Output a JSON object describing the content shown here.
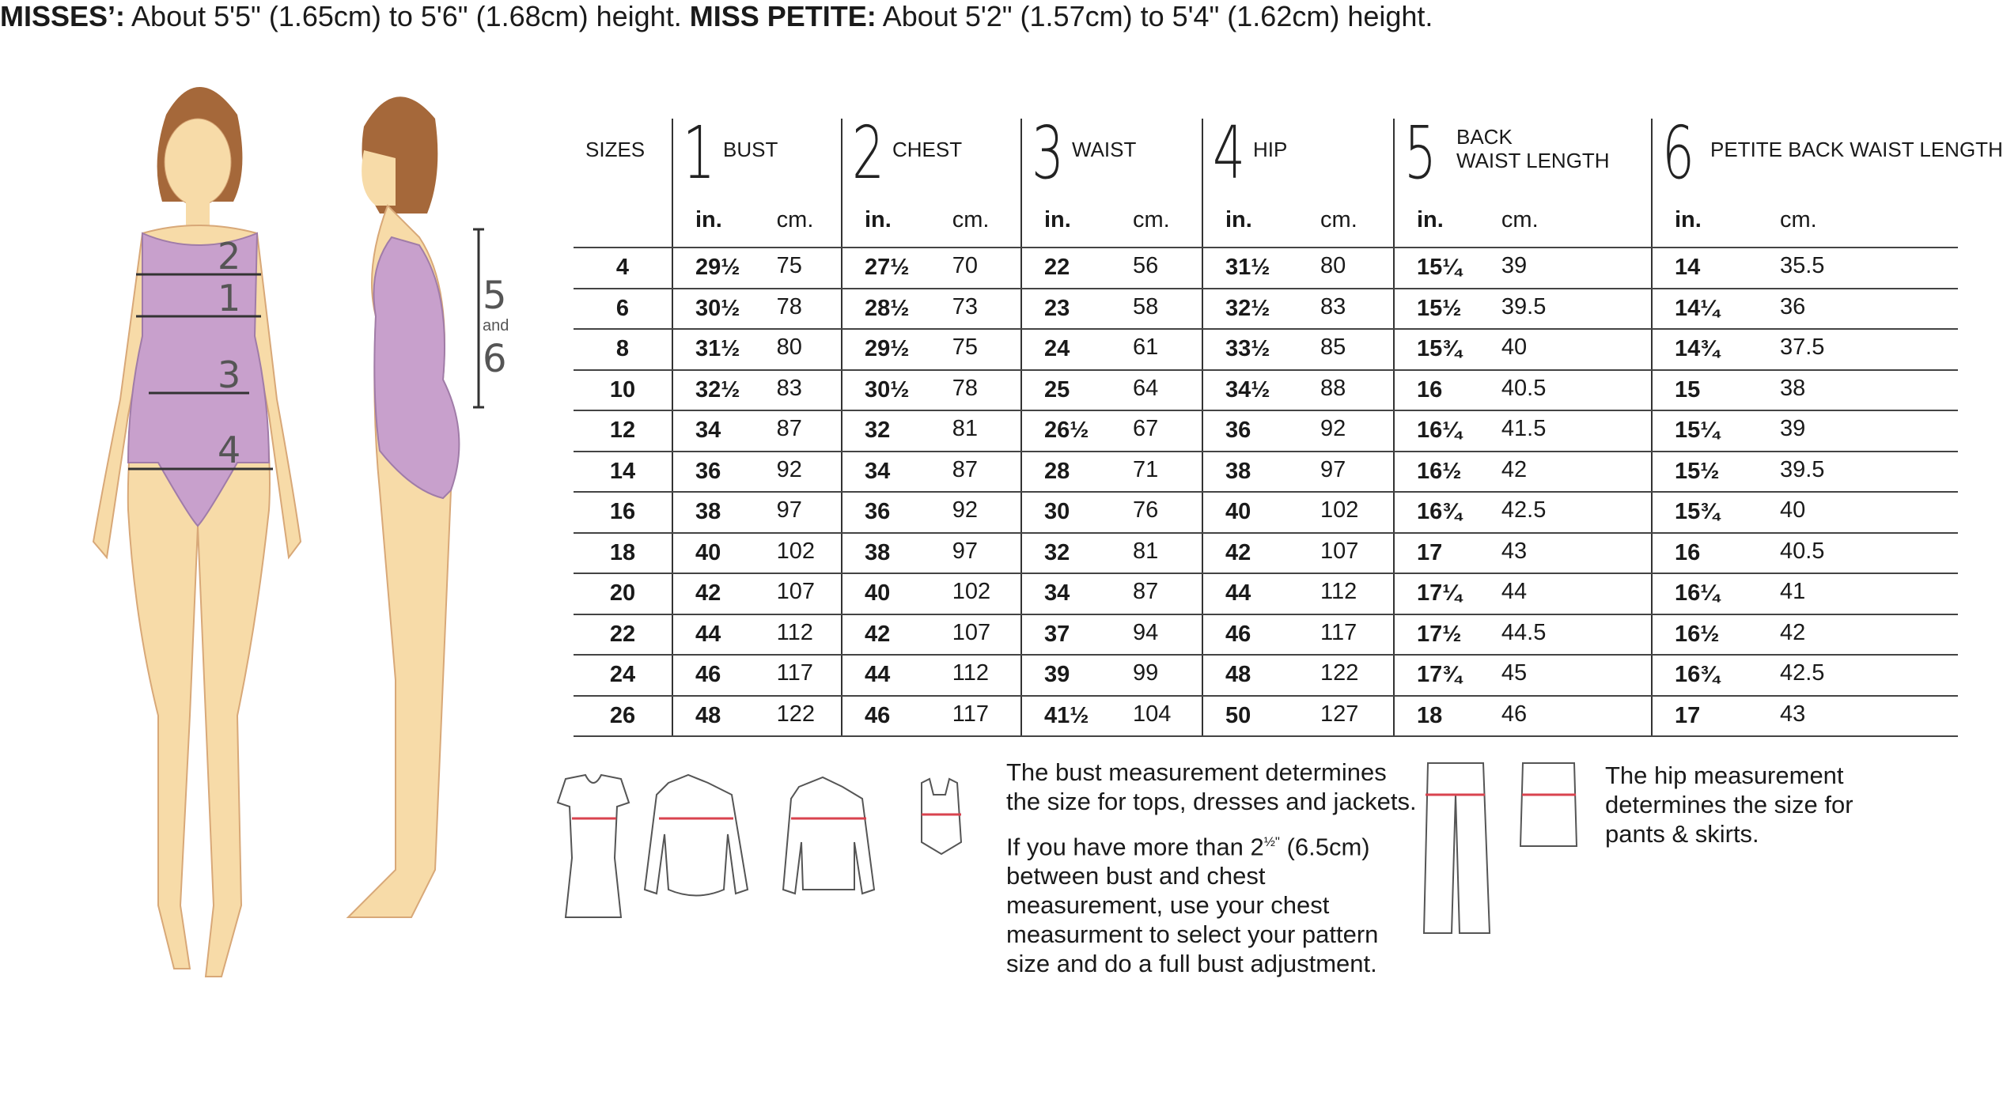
{
  "heading": {
    "misses_label": "MISSES’:",
    "misses_text": "About 5'5\" (1.65cm) to 5'6\" (1.68cm) height.",
    "petite_label": "MISS PETITE:",
    "petite_text": "About 5'2\" (1.57cm) to 5'4\" (1.62cm) height."
  },
  "figure_labels": {
    "front": [
      "2",
      "1",
      "3",
      "4"
    ],
    "side_top": "5",
    "side_and": "and",
    "side_bottom": "6"
  },
  "table": {
    "sizes_header": "SIZES",
    "columns": [
      {
        "num": "1",
        "label": "BUST"
      },
      {
        "num": "2",
        "label": "CHEST"
      },
      {
        "num": "3",
        "label": "WAIST"
      },
      {
        "num": "4",
        "label": "HIP"
      },
      {
        "num": "5",
        "label": "BACK\nWAIST LENGTH"
      },
      {
        "num": "6",
        "label": "PETITE BACK WAIST LENGTH"
      }
    ],
    "unit_in": "in.",
    "unit_cm": "cm.",
    "rows": [
      [
        "4",
        "29½",
        "75",
        "27½",
        "70",
        "22",
        "56",
        "31½",
        "80",
        "15¼",
        "39",
        "14",
        "35.5"
      ],
      [
        "6",
        "30½",
        "78",
        "28½",
        "73",
        "23",
        "58",
        "32½",
        "83",
        "15½",
        "39.5",
        "14¼",
        "36"
      ],
      [
        "8",
        "31½",
        "80",
        "29½",
        "75",
        "24",
        "61",
        "33½",
        "85",
        "15¾",
        "40",
        "14¾",
        "37.5"
      ],
      [
        "10",
        "32½",
        "83",
        "30½",
        "78",
        "25",
        "64",
        "34½",
        "88",
        "16",
        "40.5",
        "15",
        "38"
      ],
      [
        "12",
        "34",
        "87",
        "32",
        "81",
        "26½",
        "67",
        "36",
        "92",
        "16¼",
        "41.5",
        "15¼",
        "39"
      ],
      [
        "14",
        "36",
        "92",
        "34",
        "87",
        "28",
        "71",
        "38",
        "97",
        "16½",
        "42",
        "15½",
        "39.5"
      ],
      [
        "16",
        "38",
        "97",
        "36",
        "92",
        "30",
        "76",
        "40",
        "102",
        "16¾",
        "42.5",
        "15¾",
        "40"
      ],
      [
        "18",
        "40",
        "102",
        "38",
        "97",
        "32",
        "81",
        "42",
        "107",
        "17",
        "43",
        "16",
        "40.5"
      ],
      [
        "20",
        "42",
        "107",
        "40",
        "102",
        "34",
        "87",
        "44",
        "112",
        "17¼",
        "44",
        "16¼",
        "41"
      ],
      [
        "22",
        "44",
        "112",
        "42",
        "107",
        "37",
        "94",
        "46",
        "117",
        "17½",
        "44.5",
        "16½",
        "42"
      ],
      [
        "24",
        "46",
        "117",
        "44",
        "112",
        "39",
        "99",
        "48",
        "122",
        "17¾",
        "45",
        "16¾",
        "42.5"
      ],
      [
        "26",
        "48",
        "122",
        "46",
        "117",
        "41½",
        "104",
        "50",
        "127",
        "18",
        "46",
        "17",
        "43"
      ]
    ]
  },
  "notes": {
    "bust_note": "The bust measurement determines the size for tops, dresses and jackets.",
    "chest_note_pre": "If you have more than 2",
    "chest_note_sup": "½\"",
    "chest_note_post": "(6.5cm) between bust and chest measurement, use your chest measurment to select your pattern size and do a full bust adjustment.",
    "hip_note": "The hip measurement determines the size for pants & skirts."
  },
  "colors": {
    "skin": "#f7dba8",
    "swimsuit": "#c8a0cc",
    "hair": "#a5683a",
    "measure_line": "#d9434f"
  }
}
